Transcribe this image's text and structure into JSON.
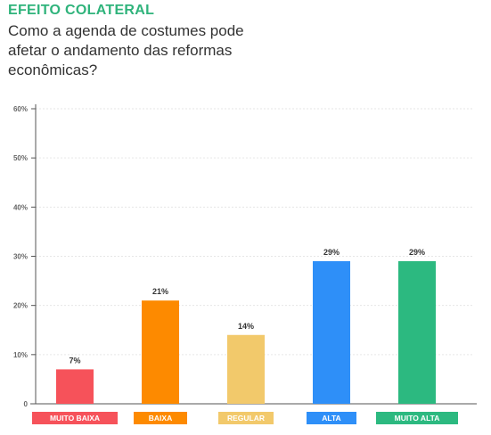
{
  "header": {
    "kicker": "EFEITO COLATERAL",
    "title": "Como a agenda de costumes pode afetar o andamento das reformas econômicas?"
  },
  "chart_data": {
    "type": "bar",
    "categories": [
      "MUITO BAIXA",
      "BAIXA",
      "REGULAR",
      "ALTA",
      "MUITO ALTA"
    ],
    "values": [
      7,
      21,
      14,
      29,
      29
    ],
    "value_labels": [
      "7%",
      "21%",
      "14%",
      "29%",
      "29%"
    ],
    "colors": [
      "#f6525a",
      "#fd8a00",
      "#f2c96b",
      "#2e8ff8",
      "#2cb980"
    ],
    "ylim": [
      0,
      60
    ],
    "yticks": [
      0,
      10,
      20,
      30,
      40,
      50,
      60
    ],
    "ytick_labels": [
      "0",
      "10%",
      "20%",
      "30%",
      "40%",
      "50%",
      "60%"
    ],
    "xlabel": "",
    "ylabel": "",
    "grid": true
  }
}
